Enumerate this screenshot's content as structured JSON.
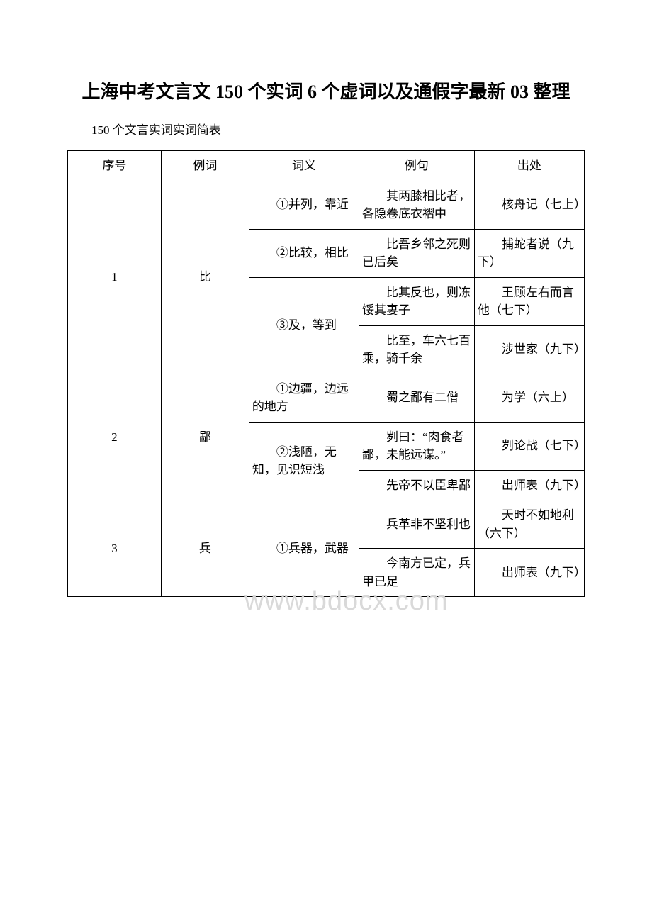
{
  "title": "上海中考文言文 150 个实词 6 个虚词以及通假字最新 03 整理",
  "subtitle": "150 个文言实词实词简表",
  "watermark": "www.bdocx.com",
  "headers": {
    "seq": "序号",
    "word": "例词",
    "meaning": "词义",
    "example": "例句",
    "source": "出处"
  },
  "rows": [
    {
      "seq": "1",
      "word": "比",
      "cells": [
        {
          "meaning": "①并列，靠近",
          "example": "其两膝相比者，各隐卷底衣褶中",
          "source": "核舟记（七上）"
        },
        {
          "meaning": "②比较，相比",
          "example": "比吾乡邻之死则已后矣",
          "source": "捕蛇者说（九下）"
        },
        {
          "meaning": "③及，等到",
          "meaning_rowspan": 2,
          "example": "比其反也，则冻馁其妻子",
          "source": "王顾左右而言他（七下）"
        },
        {
          "example": "比至，车六七百乘，骑千余",
          "source": "涉世家（九下）"
        }
      ]
    },
    {
      "seq": "2",
      "word": "鄙",
      "cells": [
        {
          "meaning": "①边疆，边远的地方",
          "example": "蜀之鄙有二僧",
          "source": "为学（六上）"
        },
        {
          "meaning": "②浅陋，无知，见识短浅",
          "meaning_rowspan": 2,
          "example": "刿曰：“肉食者鄙，未能远谋。”",
          "source": "刿论战（七下）"
        },
        {
          "example": "先帝不以臣卑鄙",
          "source": "出师表（九下）"
        }
      ]
    },
    {
      "seq": "3",
      "word": "兵",
      "cells": [
        {
          "meaning": "①兵器，武器",
          "meaning_rowspan": 2,
          "example": "兵革非不坚利也",
          "source": "天时不如地利（六下）"
        },
        {
          "example": "今南方已定，兵甲已足",
          "source": "出师表（九下）"
        }
      ]
    }
  ]
}
